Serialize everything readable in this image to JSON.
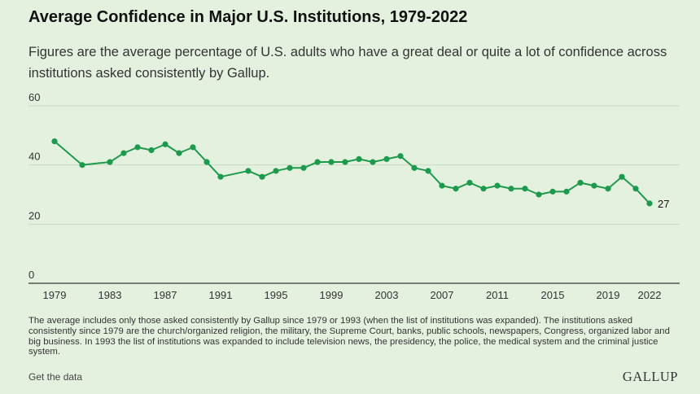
{
  "header": {
    "title": "Average Confidence in Major U.S. Institutions, 1979-2022",
    "subtitle": "Figures are the average percentage of U.S. adults who have a great deal or quite a lot of confidence across institutions asked consistently by Gallup."
  },
  "footer": {
    "note": "The average includes only those asked consistently by Gallup since 1979 or 1993 (when the list of institutions was expanded). The institutions asked consistently since 1979 are the church/organized religion, the military, the Supreme Court, banks, public schools, newspapers, Congress, organized labor and big business. In 1993 the list of institutions was expanded to include television news, the presidency, the police, the medical system and the criminal justice system.",
    "get_data": "Get the data",
    "logo": "GALLUP"
  },
  "colors": {
    "line": "#1e9a4c",
    "grid": "#c9d8c3",
    "baseline": "#333333",
    "background": "#e5f1df"
  },
  "chart_data": {
    "type": "line",
    "title": "Average Confidence in Major U.S. Institutions, 1979-2022",
    "xlabel": "",
    "ylabel": "",
    "xlim": [
      1979,
      2022
    ],
    "ylim": [
      0,
      60
    ],
    "y_ticks": [
      0,
      20,
      40,
      60
    ],
    "x_ticks": [
      1979,
      1983,
      1987,
      1991,
      1995,
      1999,
      2003,
      2007,
      2011,
      2015,
      2019,
      2022
    ],
    "grid": true,
    "end_label": "27",
    "series": [
      {
        "x": [
          1979,
          1981,
          1983,
          1984,
          1985,
          1986,
          1987,
          1988,
          1989,
          1990,
          1991,
          1993,
          1994,
          1995,
          1996,
          1997,
          1998,
          1999,
          2000,
          2001,
          2002,
          2003,
          2004,
          2005,
          2006,
          2007,
          2008,
          2009,
          2010,
          2011,
          2012,
          2013,
          2014,
          2015,
          2016,
          2017,
          2018,
          2019,
          2020,
          2021,
          2022
        ],
        "values": [
          48,
          40,
          41,
          44,
          46,
          45,
          47,
          44,
          46,
          41,
          36,
          38,
          36,
          38,
          39,
          39,
          41,
          41,
          41,
          42,
          41,
          42,
          43,
          39,
          38,
          33,
          32,
          34,
          32,
          33,
          32,
          32,
          30,
          31,
          31,
          34,
          33,
          32,
          36,
          32,
          27
        ]
      }
    ]
  }
}
